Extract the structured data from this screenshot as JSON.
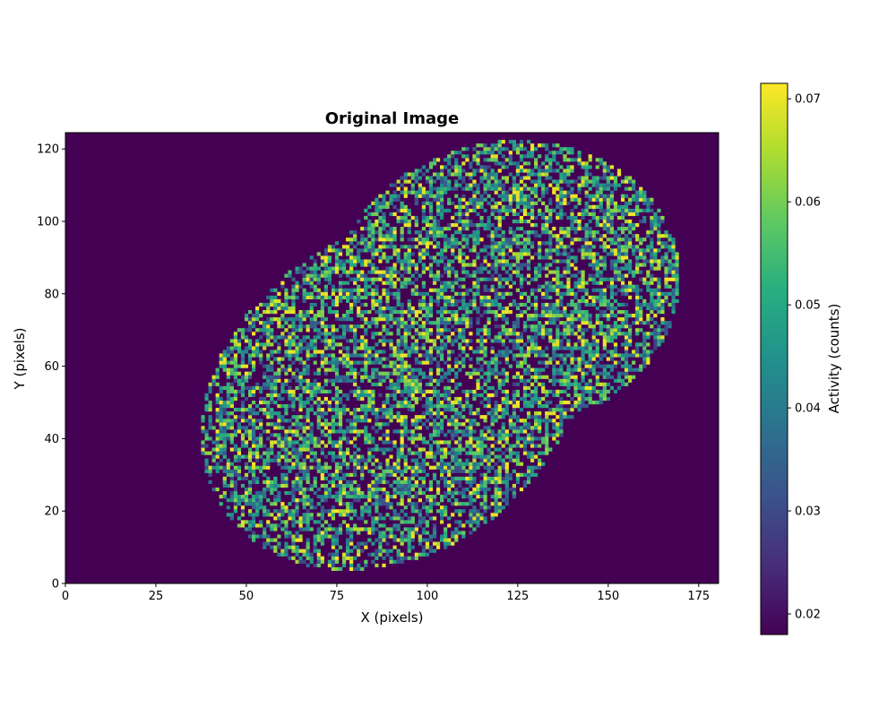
{
  "chart_data": {
    "type": "heatmap",
    "title": "Original Image",
    "xlabel": "X (pixels)",
    "ylabel": "Y (pixels)",
    "xlim": [
      0,
      180.5
    ],
    "ylim": [
      0,
      124.5
    ],
    "x_ticks": [
      0,
      25,
      50,
      75,
      100,
      125,
      150,
      175
    ],
    "y_ticks": [
      0,
      20,
      40,
      60,
      80,
      100,
      120
    ],
    "grid": false,
    "colormap": "viridis",
    "colorbar": {
      "label": "Activity (counts)",
      "range": [
        0.018,
        0.0715
      ],
      "ticks": [
        0.02,
        0.03,
        0.04,
        0.05,
        0.06,
        0.07
      ],
      "tick_labels": [
        "0.02",
        "0.03",
        "0.04",
        "0.05",
        "0.06",
        "0.07"
      ]
    },
    "background_value": 0.018,
    "regions": [
      {
        "name": "lower-left lobe",
        "center_x": 90,
        "center_y": 52,
        "radius_x": 56,
        "radius_y": 44,
        "rotation_deg": 35
      },
      {
        "name": "upper-right lobe",
        "center_x": 122,
        "center_y": 82,
        "radius_x": 48,
        "radius_y": 40,
        "rotation_deg": 10
      }
    ],
    "random_seed": 7
  }
}
